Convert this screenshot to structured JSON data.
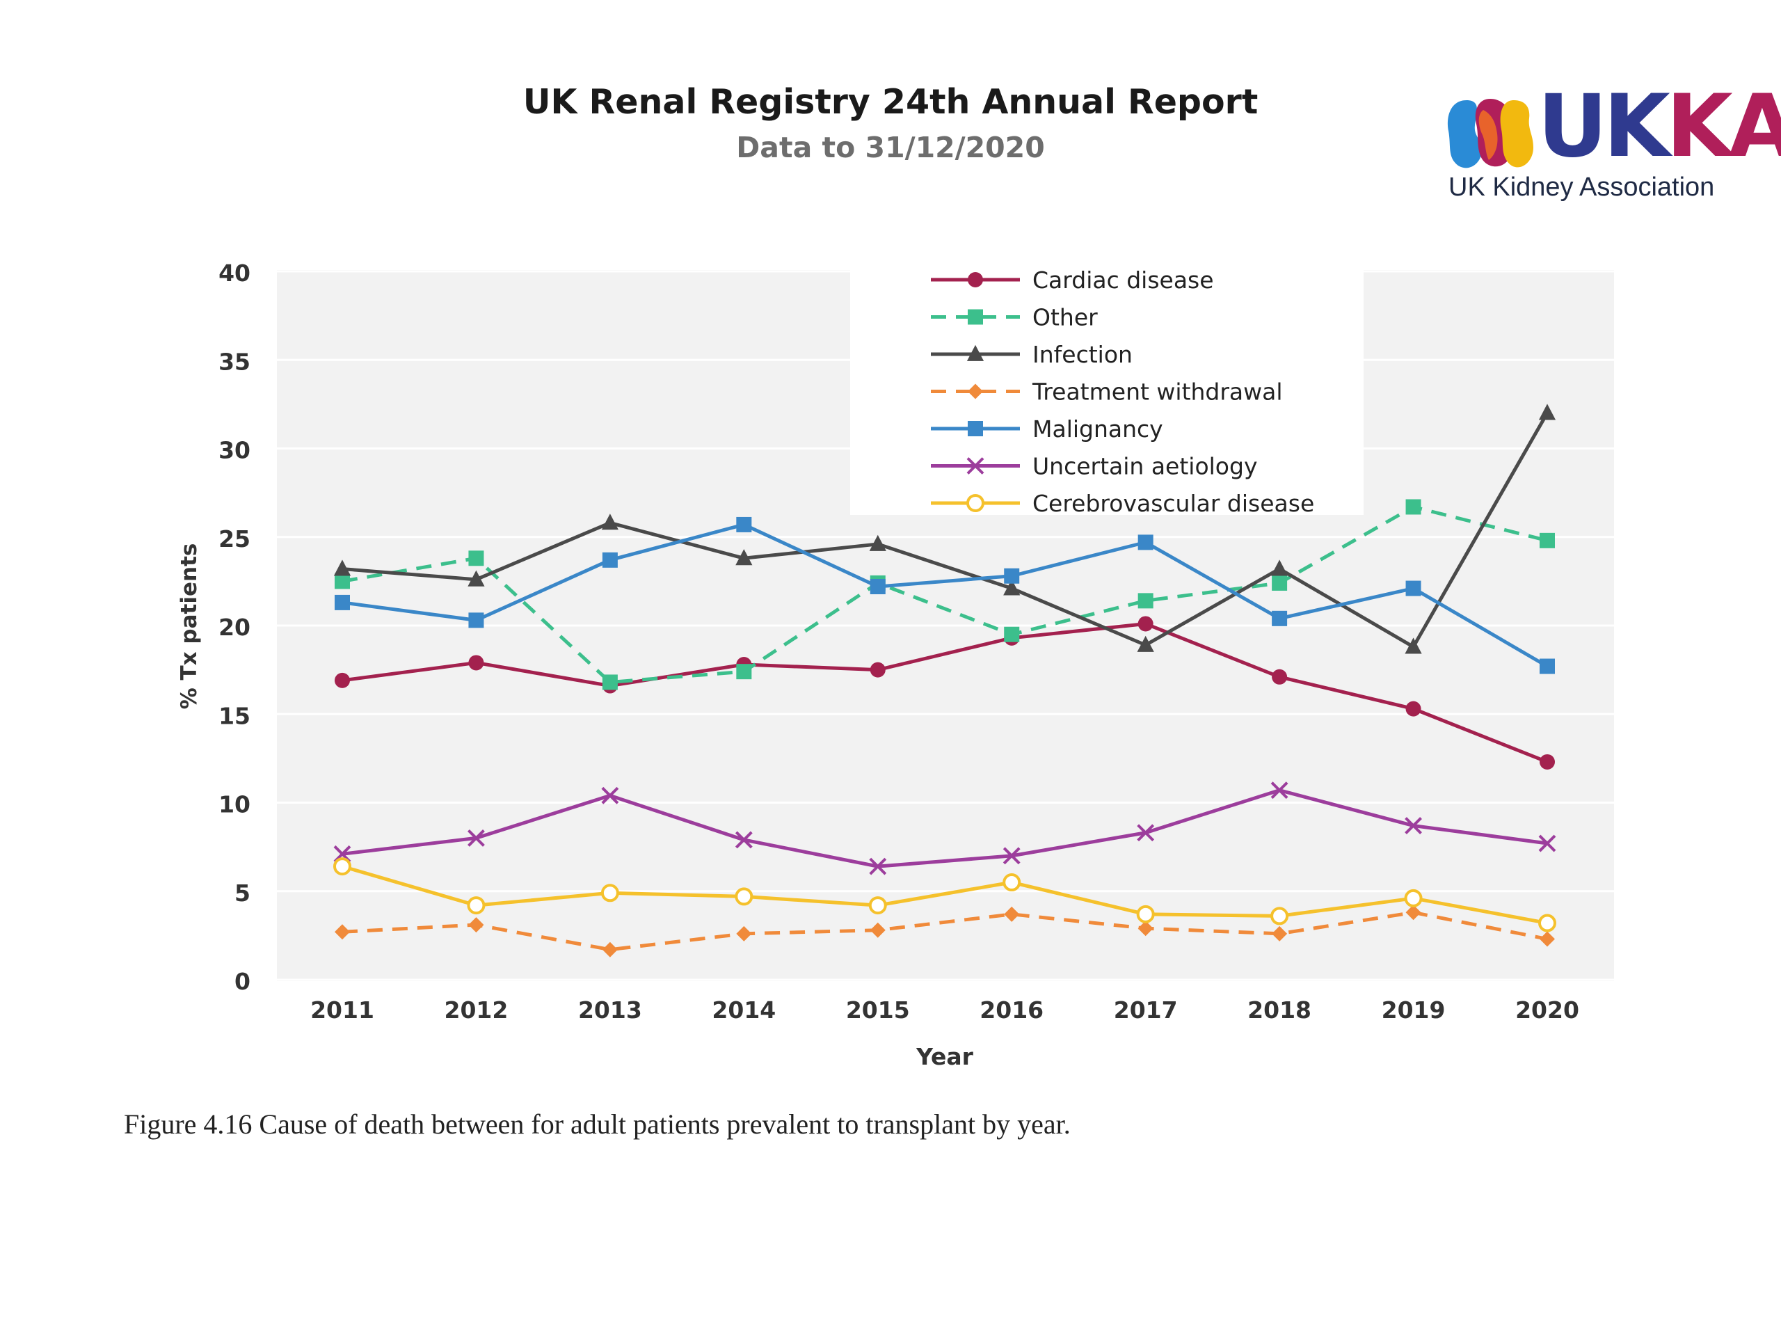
{
  "header": {
    "title": "UK Renal Registry 24th Annual Report",
    "subtitle": "Data to 31/12/2020"
  },
  "logo": {
    "wordmark_uk": "UK",
    "wordmark_ka": "KA",
    "tagline": "UK Kidney Association",
    "colors": {
      "blue": "#2f3a8f",
      "magenta": "#b01f5a",
      "orange": "#e8632b",
      "yellow": "#f2b90f",
      "lightblue": "#2a8bd6"
    }
  },
  "caption": "Figure 4.16 Cause of death between for adult patients prevalent to transplant by year.",
  "chart_data": {
    "type": "line",
    "title": "",
    "xlabel": "Year",
    "ylabel": "% Tx patients",
    "ylim": [
      0,
      40
    ],
    "yticks": [
      0,
      5,
      10,
      15,
      20,
      25,
      30,
      35,
      40
    ],
    "grid": "horizontal",
    "background": "#f2f2f2",
    "legend_position": "top-center",
    "categories": [
      "2011",
      "2012",
      "2013",
      "2014",
      "2015",
      "2016",
      "2017",
      "2018",
      "2019",
      "2020"
    ],
    "series": [
      {
        "name": "Cardiac disease",
        "color": "#a3214e",
        "marker": "circle-filled",
        "dash": "solid",
        "values": [
          16.9,
          17.9,
          16.6,
          17.8,
          17.5,
          19.3,
          20.1,
          17.1,
          15.3,
          12.3
        ]
      },
      {
        "name": "Other",
        "color": "#3cbf8c",
        "marker": "square-filled",
        "dash": "dashed",
        "values": [
          22.5,
          23.8,
          16.8,
          17.4,
          22.4,
          19.5,
          21.4,
          22.4,
          26.7,
          24.8
        ]
      },
      {
        "name": "Infection",
        "color": "#4a4a4a",
        "marker": "triangle-filled",
        "dash": "solid",
        "values": [
          23.2,
          22.6,
          25.8,
          23.8,
          24.6,
          22.1,
          18.9,
          23.2,
          18.8,
          32.0
        ]
      },
      {
        "name": "Treatment withdrawal",
        "color": "#f08a3a",
        "marker": "diamond-filled",
        "dash": "dashed",
        "values": [
          2.7,
          3.1,
          1.7,
          2.6,
          2.8,
          3.7,
          2.9,
          2.6,
          3.8,
          2.3
        ]
      },
      {
        "name": "Malignancy",
        "color": "#3a87c8",
        "marker": "square-filled",
        "dash": "solid",
        "values": [
          21.3,
          20.3,
          23.7,
          25.7,
          22.2,
          22.8,
          24.7,
          20.4,
          22.1,
          17.7
        ]
      },
      {
        "name": "Uncertain aetiology",
        "color": "#9c3d9c",
        "marker": "x",
        "dash": "solid",
        "values": [
          7.1,
          8.0,
          10.4,
          7.9,
          6.4,
          7.0,
          8.3,
          10.7,
          8.7,
          7.7
        ]
      },
      {
        "name": "Cerebrovascular disease",
        "color": "#f5c12c",
        "marker": "circle-open",
        "dash": "solid",
        "values": [
          6.4,
          4.2,
          4.9,
          4.7,
          4.2,
          5.5,
          3.7,
          3.6,
          4.6,
          3.2
        ]
      }
    ]
  }
}
